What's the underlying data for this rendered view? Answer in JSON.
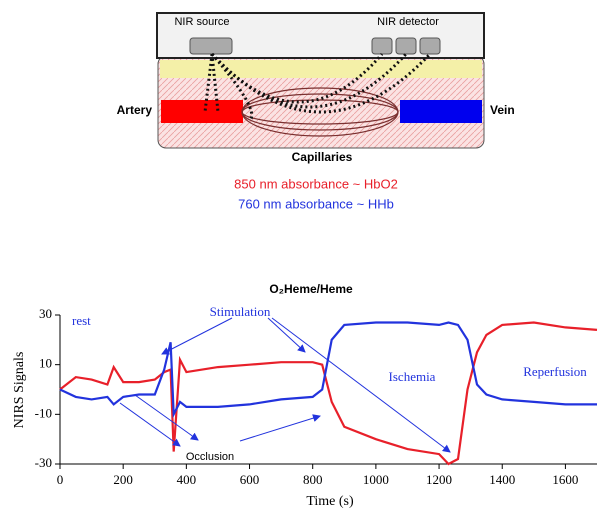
{
  "diagram": {
    "source_label": "NIR source",
    "detector_label": "NIR detector",
    "artery_label": "Artery",
    "vein_label": "Vein",
    "capillaries_label": "Capillaries",
    "line_850": "850 nm absorbance ~ HbO2",
    "line_760": "760 nm absorbance ~ HHb"
  },
  "chart_data": {
    "type": "line",
    "title": "O₂Heme/Heme",
    "xlabel": "Time (s)",
    "ylabel": "NIRS Signals",
    "annotations": [
      "rest",
      "Stimulation",
      "Ischemia",
      "Reperfusion",
      "Occlusion"
    ],
    "x": [
      0,
      50,
      100,
      150,
      170,
      200,
      250,
      300,
      330,
      350,
      360,
      380,
      400,
      500,
      600,
      700,
      800,
      830,
      860,
      900,
      1000,
      1100,
      1200,
      1230,
      1260,
      1290,
      1320,
      1350,
      1400,
      1500,
      1600,
      1700
    ],
    "series": [
      {
        "color": "#e8202a",
        "values": [
          0,
          5,
          4,
          2,
          9,
          3,
          3,
          4,
          7,
          8,
          -25,
          12,
          7,
          9,
          10,
          11,
          11,
          10,
          -5,
          -15,
          -20,
          -24,
          -26,
          -30,
          -28,
          0,
          15,
          22,
          26,
          27,
          25,
          24
        ]
      },
      {
        "color": "#2233dd",
        "values": [
          0,
          -3,
          -4,
          -3,
          -6,
          -3,
          -2,
          -2,
          8,
          19,
          -10,
          -5,
          -7,
          -7,
          -6,
          -4,
          -3,
          0,
          20,
          26,
          27,
          27,
          26,
          27,
          26,
          20,
          2,
          -2,
          -4,
          -5,
          -6,
          -6
        ]
      }
    ],
    "xlim": [
      0,
      1700
    ],
    "xticks": [
      0,
      200,
      400,
      600,
      800,
      1000,
      1200,
      1400,
      1600
    ],
    "ylim": [
      -30,
      30
    ],
    "yticks": [
      -30,
      -10,
      10,
      30
    ]
  }
}
